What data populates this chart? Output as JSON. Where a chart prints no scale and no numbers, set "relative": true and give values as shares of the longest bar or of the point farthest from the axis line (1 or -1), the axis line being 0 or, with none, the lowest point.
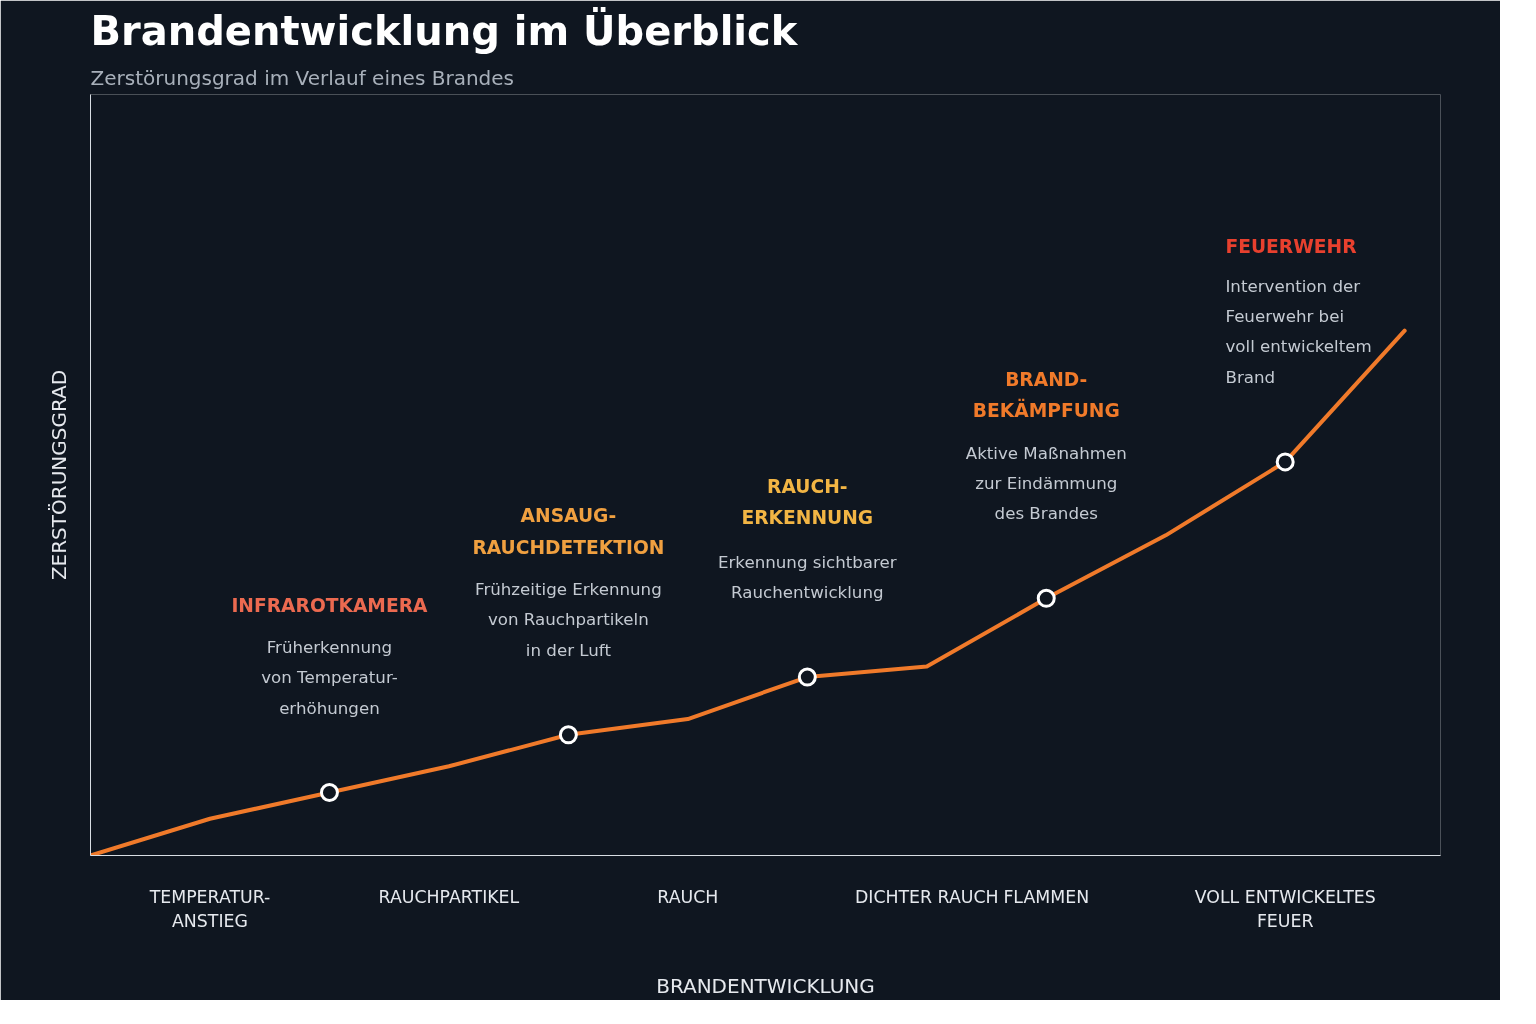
{
  "chart_data": {
    "type": "line",
    "title": "Brandentwicklung im Überblick",
    "subtitle": "Zerstörungsgrad im Verlauf eines Brandes",
    "xlabel": "BRANDENTWICKLUNG",
    "ylabel": "ZERSTÖRUNGSGRAD",
    "relative": true,
    "grid": false,
    "categories": [
      null,
      "TEMPERATUR-\nANSTIEG",
      null,
      "RAUCHPARTIKEL",
      null,
      "RAUCH",
      null,
      "DICHTER RAUCH",
      "FLAMMEN",
      null,
      "VOLL ENTWICKELTES\nFEUER",
      null
    ],
    "series": [
      {
        "color": "#f07a2a",
        "line_style": "solid",
        "values": [
          0,
          0.07,
          0.12,
          0.17,
          0.23,
          0.26,
          0.34,
          0.36,
          0.49,
          0.61,
          0.75,
          1.0
        ]
      },
      {
        "type": "scatter",
        "marker": "circle",
        "color": "#ffffff",
        "values": [
          null,
          null,
          0.12,
          null,
          0.23,
          null,
          0.34,
          null,
          0.49,
          null,
          0.75,
          null
        ]
      }
    ],
    "annotations": [
      "INFRAROTKAMERA",
      "Früherkennung\nvon Temperatur-\nerhöhungen",
      "ANSAUG-\nRAUCHDETEKTION",
      "Frühzeitige Erkennung\nvon Rauchpartikeln\nin der Luft",
      "RAUCH-\nERKENNUNG",
      "Erkennung sichtbarer\nRauchentwicklung",
      "BRAND-\nBEKÄMPFUNG",
      "Aktive Maßnahmen\nzur Eindämmung\ndes Brandes",
      "FEUERWEHR",
      "Intervention der\nFeuerwehr bei\nvoll entwickeltem\nBrand"
    ]
  }
}
